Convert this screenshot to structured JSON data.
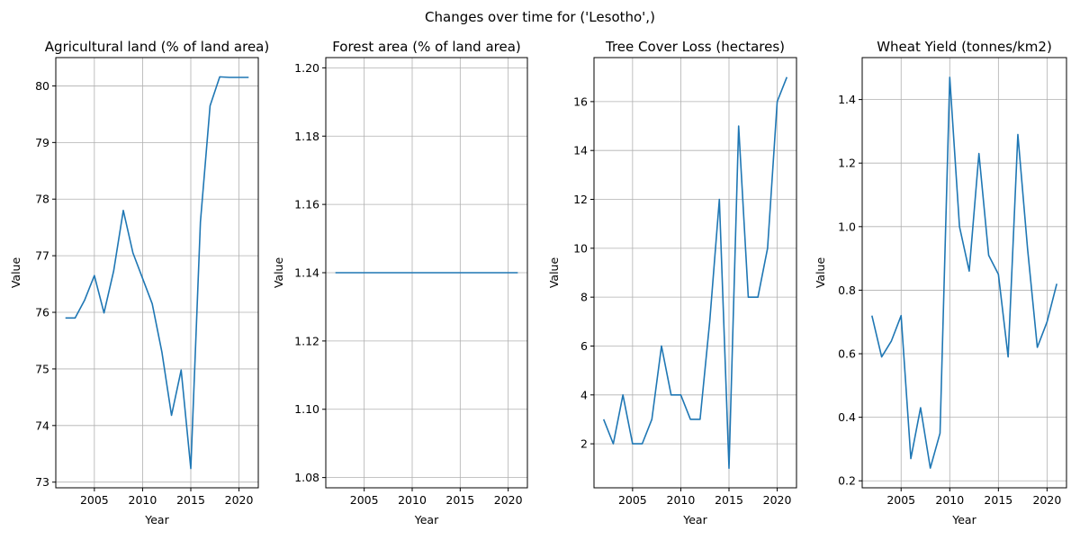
{
  "figure": {
    "suptitle": "Changes over time for ('Lesotho',)",
    "line_color": "#1f77b4"
  },
  "chart_data": [
    {
      "type": "line",
      "title": "Agricultural land (% of land area)",
      "xlabel": "Year",
      "ylabel": "Value",
      "xlim": [
        2001,
        2022
      ],
      "ylim": [
        72.9,
        80.5
      ],
      "xticks": [
        2005,
        2010,
        2015,
        2020
      ],
      "yticks": [
        73,
        74,
        75,
        76,
        77,
        78,
        79,
        80
      ],
      "ytick_decimals": 0,
      "grid": true,
      "x": [
        2002,
        2003,
        2004,
        2005,
        2006,
        2007,
        2008,
        2009,
        2010,
        2011,
        2012,
        2013,
        2014,
        2015,
        2016,
        2017,
        2018,
        2019,
        2020,
        2021
      ],
      "y": [
        75.9,
        75.9,
        76.22,
        76.65,
        75.99,
        76.73,
        77.8,
        77.05,
        76.6,
        76.15,
        75.3,
        74.18,
        74.98,
        73.24,
        77.6,
        79.65,
        80.16,
        80.15,
        80.15,
        80.15
      ]
    },
    {
      "type": "line",
      "title": "Forest area (% of land area)",
      "xlabel": "Year",
      "ylabel": "Value",
      "xlim": [
        2001,
        2022
      ],
      "ylim": [
        1.077,
        1.203
      ],
      "xticks": [
        2005,
        2010,
        2015,
        2020
      ],
      "yticks": [
        1.08,
        1.1,
        1.12,
        1.14,
        1.16,
        1.18,
        1.2
      ],
      "ytick_decimals": 2,
      "grid": true,
      "x": [
        2002,
        2003,
        2004,
        2005,
        2006,
        2007,
        2008,
        2009,
        2010,
        2011,
        2012,
        2013,
        2014,
        2015,
        2016,
        2017,
        2018,
        2019,
        2020,
        2021
      ],
      "y": [
        1.14,
        1.14,
        1.14,
        1.14,
        1.14,
        1.14,
        1.14,
        1.14,
        1.14,
        1.14,
        1.14,
        1.14,
        1.14,
        1.14,
        1.14,
        1.14,
        1.14,
        1.14,
        1.14,
        1.14
      ]
    },
    {
      "type": "line",
      "title": "Tree Cover Loss (hectares)",
      "xlabel": "Year",
      "ylabel": "Value",
      "xlim": [
        2001,
        2022
      ],
      "ylim": [
        0.2,
        17.8
      ],
      "xticks": [
        2005,
        2010,
        2015,
        2020
      ],
      "yticks": [
        2,
        4,
        6,
        8,
        10,
        12,
        14,
        16
      ],
      "ytick_decimals": 0,
      "grid": true,
      "x": [
        2002,
        2003,
        2004,
        2005,
        2006,
        2007,
        2008,
        2009,
        2010,
        2011,
        2012,
        2013,
        2014,
        2015,
        2016,
        2017,
        2018,
        2019,
        2020,
        2021
      ],
      "y": [
        3,
        2,
        4,
        2,
        2,
        3,
        6,
        4,
        4,
        3,
        3,
        7,
        12,
        1,
        15,
        8,
        8,
        10,
        16,
        17
      ]
    },
    {
      "type": "line",
      "title": "Wheat Yield (tonnes/km2)",
      "xlabel": "Year",
      "ylabel": "Value",
      "xlim": [
        2001,
        2022
      ],
      "ylim": [
        0.178,
        1.532
      ],
      "xticks": [
        2005,
        2010,
        2015,
        2020
      ],
      "yticks": [
        0.2,
        0.4,
        0.6,
        0.8,
        1.0,
        1.2,
        1.4
      ],
      "ytick_decimals": 1,
      "grid": true,
      "x": [
        2002,
        2003,
        2004,
        2005,
        2006,
        2007,
        2008,
        2009,
        2010,
        2011,
        2012,
        2013,
        2014,
        2015,
        2016,
        2017,
        2018,
        2019,
        2020,
        2021
      ],
      "y": [
        0.72,
        0.59,
        0.64,
        0.72,
        0.27,
        0.43,
        0.24,
        0.35,
        1.47,
        1.0,
        0.86,
        1.23,
        0.91,
        0.85,
        0.59,
        1.29,
        0.93,
        0.62,
        0.7,
        0.82
      ]
    }
  ]
}
